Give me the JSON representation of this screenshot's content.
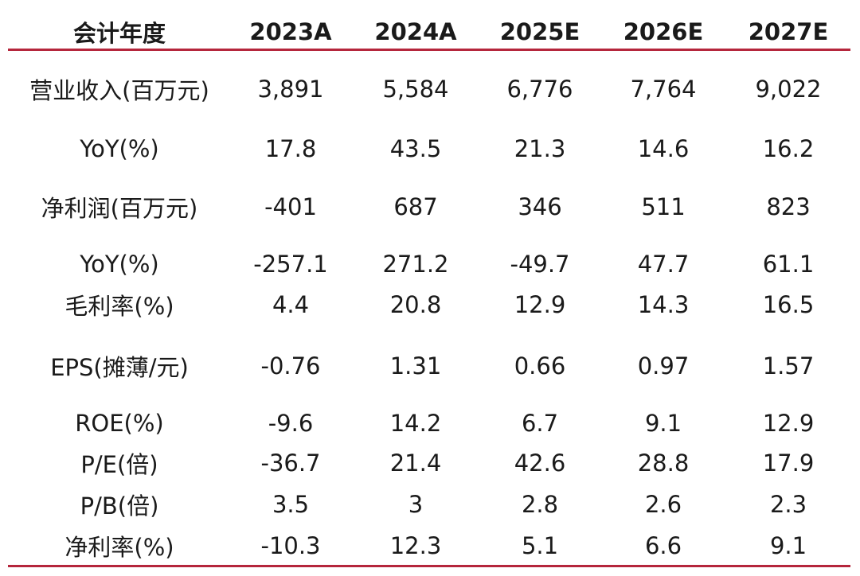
{
  "table": {
    "header": [
      "会计年度",
      "2023A",
      "2024A",
      "2025E",
      "2026E",
      "2027E"
    ],
    "rows": [
      [
        "营业收入(百万元)",
        "3,891",
        "5,584",
        "6,776",
        "7,764",
        "9,022"
      ],
      [
        "YoY(%)",
        "17.8",
        "43.5",
        "21.3",
        "14.6",
        "16.2"
      ],
      [
        "净利润(百万元)",
        "-401",
        "687",
        "346",
        "511",
        "823"
      ],
      [
        "YoY(%)",
        "-257.1",
        "271.2",
        "-49.7",
        "47.7",
        "61.1"
      ],
      [
        "毛利率(%)",
        "4.4",
        "20.8",
        "12.9",
        "14.3",
        "16.5"
      ],
      [
        "EPS(摊薄/元)",
        "-0.76",
        "1.31",
        "0.66",
        "0.97",
        "1.57"
      ],
      [
        "ROE(%)",
        "-9.6",
        "14.2",
        "6.7",
        "9.1",
        "12.9"
      ],
      [
        "P/E(倍)",
        "-36.7",
        "21.4",
        "42.6",
        "28.8",
        "17.9"
      ],
      [
        "P/B(倍)",
        "3.5",
        "3",
        "2.8",
        "2.6",
        "2.3"
      ],
      [
        "净利率(%)",
        "-10.3",
        "12.3",
        "5.1",
        "6.6",
        "9.1"
      ]
    ]
  }
}
